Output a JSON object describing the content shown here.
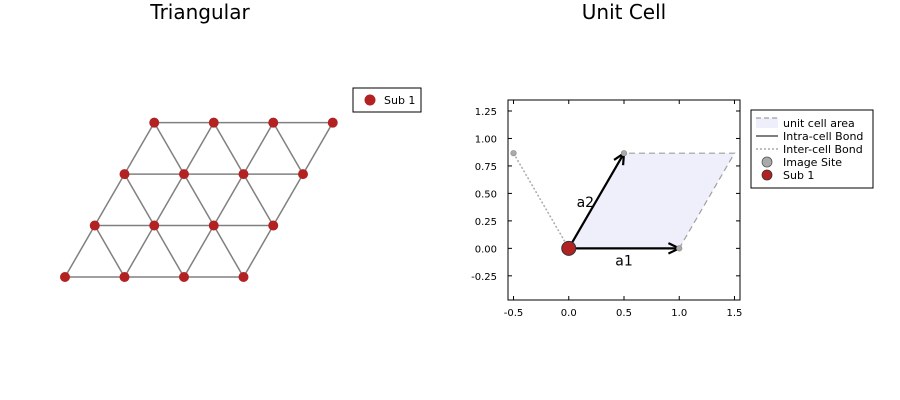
{
  "chart_data": [
    {
      "type": "scatter",
      "title": "Triangular",
      "legend": {
        "placement": "top-right",
        "entries": [
          "Sub 1"
        ]
      },
      "colors": {
        "site": "#b22222",
        "bond": "#808080"
      },
      "grid": false,
      "axes_visible": false,
      "lattice": {
        "rows": 4,
        "cols": 4,
        "a1": [
          1,
          0
        ],
        "a2": [
          0.5,
          0.866
        ]
      },
      "series": [
        {
          "name": "Sub 1",
          "points": [
            [
              0,
              0
            ],
            [
              1,
              0
            ],
            [
              2,
              0
            ],
            [
              3,
              0
            ],
            [
              0.5,
              0.866
            ],
            [
              1.5,
              0.866
            ],
            [
              2.5,
              0.866
            ],
            [
              3.5,
              0.866
            ],
            [
              1,
              1.732
            ],
            [
              2,
              1.732
            ],
            [
              3,
              1.732
            ],
            [
              4,
              1.732
            ],
            [
              1.5,
              2.598
            ],
            [
              2.5,
              2.598
            ],
            [
              3.5,
              2.598
            ],
            [
              4.5,
              2.598
            ]
          ]
        }
      ]
    },
    {
      "type": "scatter",
      "title": "Unit Cell",
      "xlim": [
        -0.55,
        1.55
      ],
      "ylim": [
        -0.47,
        1.35
      ],
      "xticks": [
        "-0.5",
        "0.0",
        "0.5",
        "1.0",
        "1.5"
      ],
      "yticks": [
        "-0.25",
        "0.00",
        "0.25",
        "0.50",
        "0.75",
        "1.00",
        "1.25"
      ],
      "grid": false,
      "legend": {
        "placement": "top-right",
        "entries": [
          "unit cell area",
          "Intra-cell Bond",
          "Inter-cell Bond",
          "Image Site",
          "Sub 1"
        ]
      },
      "colors": {
        "cell_fill": "#efeffb",
        "cell_edge": "#a0a0a0",
        "site": "#b22222",
        "image_site": "#aaaaaa",
        "inter_bond": "#aaaaaa",
        "intra_bond": "#555555",
        "vector": "#000000"
      },
      "unit_cell": [
        [
          0,
          0
        ],
        [
          1,
          0
        ],
        [
          1.5,
          0.866
        ],
        [
          0.5,
          0.866
        ]
      ],
      "sites": [
        {
          "name": "Sub 1",
          "x": 0,
          "y": 0
        }
      ],
      "image_sites": [
        [
          1,
          0
        ],
        [
          0.5,
          0.866
        ],
        [
          -0.5,
          0.866
        ]
      ],
      "inter_bonds": [
        [
          [
            0,
            0
          ],
          [
            1,
            0
          ]
        ],
        [
          [
            0,
            0
          ],
          [
            0.5,
            0.866
          ]
        ],
        [
          [
            0,
            0
          ],
          [
            -0.5,
            0.866
          ]
        ]
      ],
      "vectors": [
        {
          "label": "a1",
          "x": 1,
          "y": 0
        },
        {
          "label": "a2",
          "x": 0.5,
          "y": 0.866
        }
      ]
    }
  ]
}
